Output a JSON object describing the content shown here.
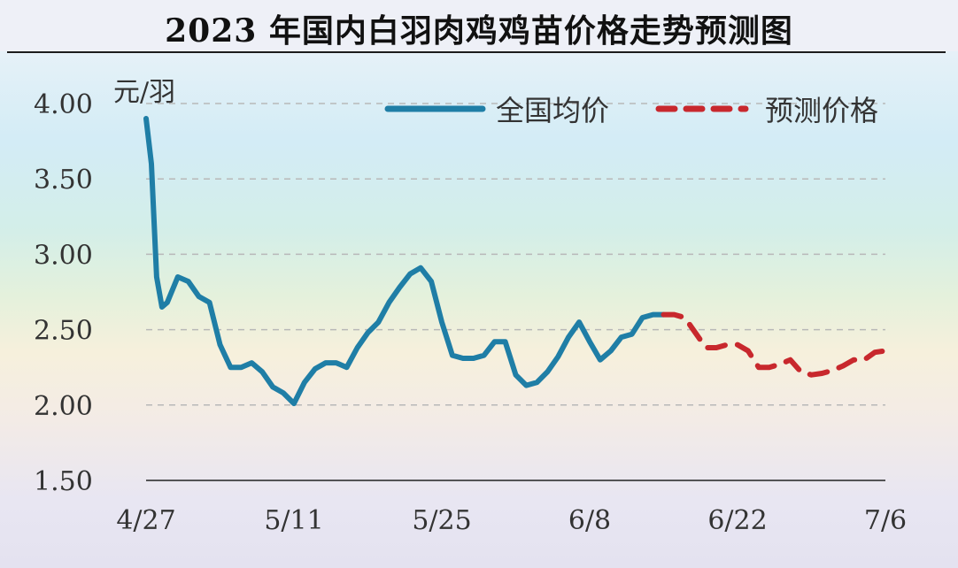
{
  "chart_data": {
    "type": "line",
    "title": "2023 年国内白羽肉鸡鸡苗价格走势预测图",
    "ylabel": "元/羽",
    "ylim": [
      1.5,
      4.0
    ],
    "yticks": [
      "4.00",
      "3.50",
      "3.00",
      "2.50",
      "2.00",
      "1.50"
    ],
    "xticks": [
      "4/27",
      "5/11",
      "5/25",
      "6/8",
      "6/22",
      "7/6"
    ],
    "grid": true,
    "legend_position": "top-right",
    "colors": {
      "全国均价": "#1f7ea6",
      "预测价格": "#c8282d"
    },
    "series": [
      {
        "name": "全国均价",
        "style": "solid",
        "x": [
          "4/27",
          "4/27",
          "4/28",
          "4/28",
          "4/29",
          "4/30",
          "5/1",
          "5/2",
          "5/3",
          "5/4",
          "5/5",
          "5/6",
          "5/7",
          "5/8",
          "5/9",
          "5/10",
          "5/11",
          "5/12",
          "5/13",
          "5/14",
          "5/15",
          "5/16",
          "5/17",
          "5/18",
          "5/19",
          "5/20",
          "5/21",
          "5/22",
          "5/23",
          "5/24",
          "5/25",
          "5/26",
          "5/27",
          "5/28",
          "5/29",
          "5/30",
          "5/31",
          "6/1",
          "6/2",
          "6/3",
          "6/4",
          "6/5",
          "6/6",
          "6/7",
          "6/8",
          "6/9",
          "6/10",
          "6/11",
          "6/12",
          "6/13",
          "6/14",
          "6/15"
        ],
        "values": [
          3.9,
          3.6,
          2.85,
          2.65,
          2.68,
          2.85,
          2.82,
          2.72,
          2.68,
          2.4,
          2.25,
          2.25,
          2.28,
          2.22,
          2.12,
          2.08,
          2.01,
          2.15,
          2.24,
          2.28,
          2.28,
          2.25,
          2.38,
          2.48,
          2.55,
          2.68,
          2.78,
          2.87,
          2.91,
          2.82,
          2.55,
          2.33,
          2.31,
          2.31,
          2.33,
          2.42,
          2.42,
          2.2,
          2.13,
          2.15,
          2.22,
          2.32,
          2.45,
          2.55,
          2.42,
          2.3,
          2.36,
          2.45,
          2.47,
          2.58,
          2.6,
          2.6
        ]
      },
      {
        "name": "预测价格",
        "style": "dashed",
        "x": [
          "6/15",
          "6/16",
          "6/17",
          "6/18",
          "6/19",
          "6/20",
          "6/21",
          "6/22",
          "6/23",
          "6/24",
          "6/25",
          "6/26",
          "6/27",
          "6/28",
          "6/29",
          "6/30",
          "7/1",
          "7/2",
          "7/3",
          "7/4",
          "7/5",
          "7/6"
        ],
        "values": [
          2.6,
          2.6,
          2.58,
          2.48,
          2.38,
          2.38,
          2.4,
          2.4,
          2.36,
          2.25,
          2.25,
          2.27,
          2.3,
          2.22,
          2.2,
          2.21,
          2.23,
          2.26,
          2.3,
          2.3,
          2.35,
          2.36
        ]
      }
    ]
  }
}
